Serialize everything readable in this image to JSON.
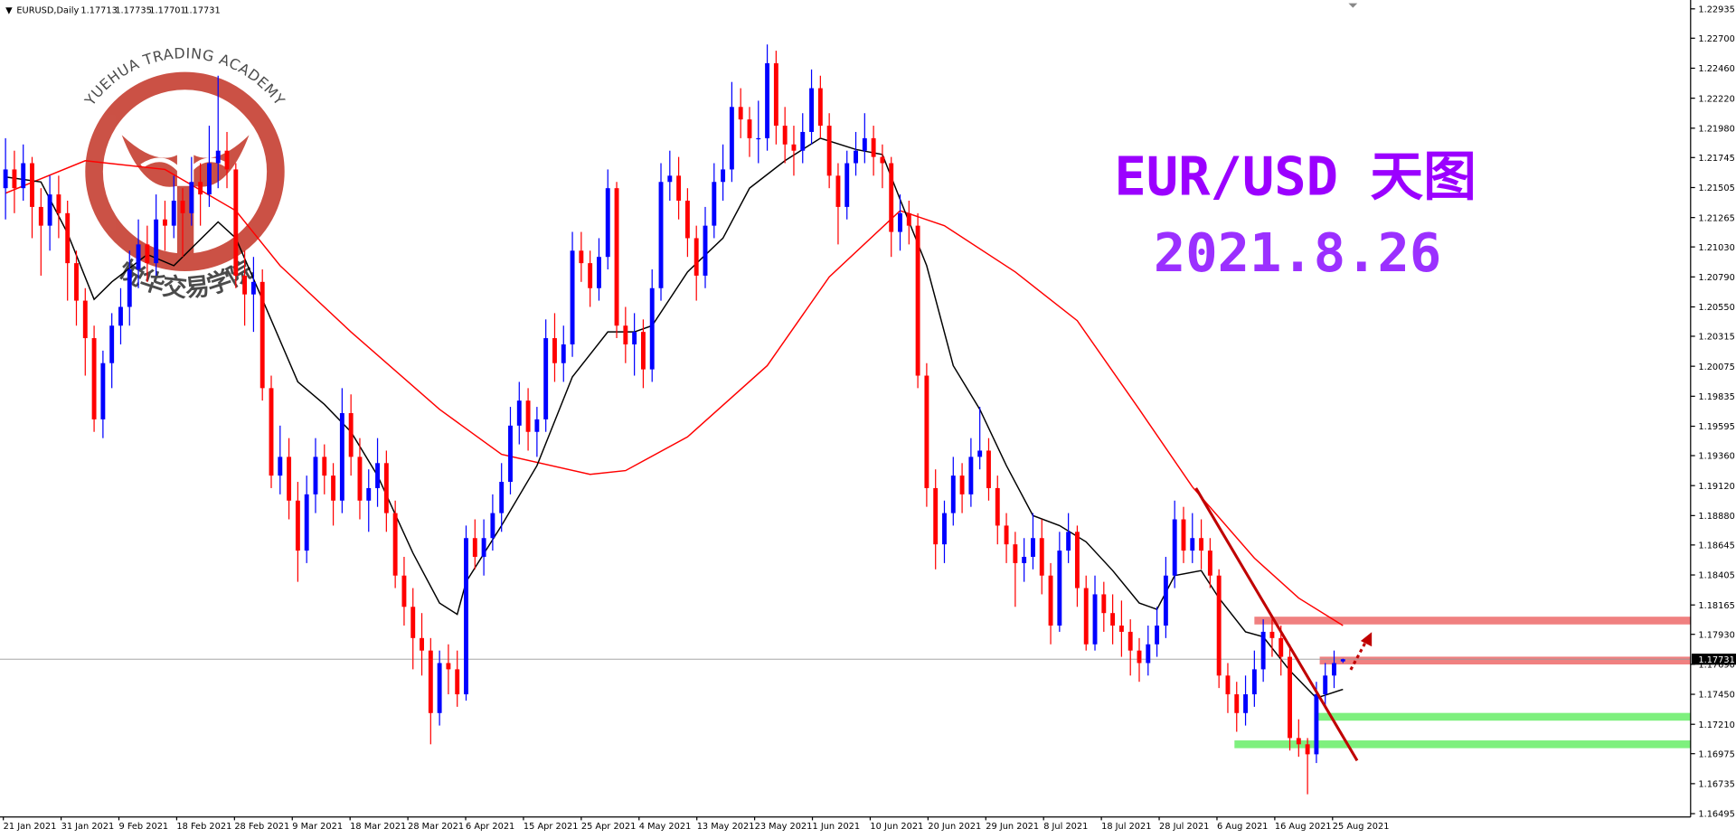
{
  "chart_data": {
    "type": "candlestick",
    "title": "EUR/USD 天图",
    "subtitle": "2021.8.26",
    "symbol": "EURUSD,Daily",
    "watermark": {
      "en": "YUEHUA TRADING ACADEMY",
      "cn": "悦华交易学院"
    },
    "up_color": "#0000ff",
    "down_color": "#ff0000",
    "ylim": [
      1.16495,
      1.22935
    ],
    "yticks": [
      1.22935,
      {
        "value": 1.227,
        "label": "1.22700"
      },
      {
        "value": 1.2246,
        "label": "1.22460"
      },
      {
        "value": 1.2222,
        "label": "1.22220"
      },
      {
        "value": 1.2198,
        "label": "1.21980"
      },
      1.21745,
      1.21505,
      1.21265,
      {
        "value": 1.2103,
        "label": "1.21030"
      },
      {
        "value": 1.2079,
        "label": "1.20790"
      },
      {
        "value": 1.2055,
        "label": "1.20550"
      },
      1.20315,
      1.20075,
      1.19835,
      1.19595,
      {
        "value": 1.1936,
        "label": "1.19360"
      },
      {
        "value": 1.1912,
        "label": "1.19120"
      },
      {
        "value": 1.1888,
        "label": "1.18880"
      },
      1.18645,
      1.18405,
      1.18165,
      {
        "value": 1.1793,
        "label": "1.17930"
      },
      {
        "value": 1.1769,
        "label": "1.17690"
      },
      {
        "value": 1.1745,
        "label": "1.17450"
      },
      {
        "value": 1.1721,
        "label": "1.17210"
      },
      1.16975,
      1.16735,
      1.16495
    ],
    "categories": [
      "21 Jan 2021",
      "31 Jan 2021",
      "9 Feb 2021",
      "18 Feb 2021",
      "28 Feb 2021",
      "9 Mar 2021",
      "18 Mar 2021",
      "28 Mar 2021",
      "6 Apr 2021",
      "15 Apr 2021",
      "25 Apr 2021",
      "4 May 2021",
      "13 May 2021",
      "23 May 2021",
      "1 Jun 2021",
      "10 Jun 2021",
      "20 Jun 2021",
      "29 Jun 2021",
      "8 Jul 2021",
      "18 Jul 2021",
      "28 Jul 2021",
      "6 Aug 2021",
      "16 Aug 2021",
      "25 Aug 2021"
    ],
    "candles": [
      [
        1.215,
        1.219,
        1.2125,
        1.2165
      ],
      [
        1.2165,
        1.218,
        1.213,
        1.215
      ],
      [
        1.215,
        1.2185,
        1.214,
        1.217
      ],
      [
        1.217,
        1.2175,
        1.211,
        1.2135
      ],
      [
        1.2135,
        1.215,
        1.208,
        1.212
      ],
      [
        1.212,
        1.216,
        1.21,
        1.2145
      ],
      [
        1.2145,
        1.216,
        1.211,
        1.213
      ],
      [
        1.213,
        1.214,
        1.206,
        1.209
      ],
      [
        1.209,
        1.21,
        1.204,
        1.206
      ],
      [
        1.206,
        1.207,
        1.2,
        1.203
      ],
      [
        1.203,
        1.204,
        1.1955,
        1.1965
      ],
      [
        1.1965,
        1.202,
        1.195,
        1.201
      ],
      [
        1.201,
        1.205,
        1.199,
        1.204
      ],
      [
        1.204,
        1.207,
        1.2025,
        1.2055
      ],
      [
        1.2055,
        1.21,
        1.204,
        1.2085
      ],
      [
        1.2085,
        1.2125,
        1.207,
        1.2105
      ],
      [
        1.2105,
        1.212,
        1.2075,
        1.209
      ],
      [
        1.209,
        1.2145,
        1.208,
        1.2125
      ],
      [
        1.2125,
        1.214,
        1.21,
        1.212
      ],
      [
        1.212,
        1.216,
        1.211,
        1.214
      ],
      [
        1.214,
        1.215,
        1.2095,
        1.213
      ],
      [
        1.213,
        1.2175,
        1.212,
        1.2155
      ],
      [
        1.2155,
        1.217,
        1.212,
        1.2145
      ],
      [
        1.2145,
        1.22,
        1.2135,
        1.217
      ],
      [
        1.217,
        1.224,
        1.215,
        1.218
      ],
      [
        1.218,
        1.2195,
        1.215,
        1.2165
      ],
      [
        1.2165,
        1.217,
        1.207,
        1.208
      ],
      [
        1.208,
        1.21,
        1.204,
        1.2065
      ],
      [
        1.2065,
        1.2095,
        1.2035,
        1.2075
      ],
      [
        1.2075,
        1.2085,
        1.198,
        1.199
      ],
      [
        1.199,
        1.2,
        1.191,
        1.192
      ],
      [
        1.192,
        1.196,
        1.1905,
        1.1935
      ],
      [
        1.1935,
        1.195,
        1.1885,
        1.19
      ],
      [
        1.19,
        1.1915,
        1.1835,
        1.186
      ],
      [
        1.186,
        1.192,
        1.185,
        1.1905
      ],
      [
        1.1905,
        1.195,
        1.189,
        1.1935
      ],
      [
        1.1935,
        1.1945,
        1.1905,
        1.192
      ],
      [
        1.192,
        1.193,
        1.188,
        1.19
      ],
      [
        1.19,
        1.199,
        1.189,
        1.197
      ],
      [
        1.197,
        1.1985,
        1.192,
        1.1935
      ],
      [
        1.1935,
        1.195,
        1.1885,
        1.19
      ],
      [
        1.19,
        1.1925,
        1.1875,
        1.191
      ],
      [
        1.191,
        1.195,
        1.1895,
        1.193
      ],
      [
        1.193,
        1.194,
        1.1875,
        1.189
      ],
      [
        1.189,
        1.19,
        1.183,
        1.184
      ],
      [
        1.184,
        1.1855,
        1.18,
        1.1815
      ],
      [
        1.1815,
        1.183,
        1.1765,
        1.179
      ],
      [
        1.179,
        1.181,
        1.176,
        1.178
      ],
      [
        1.178,
        1.179,
        1.1705,
        1.173
      ],
      [
        1.173,
        1.178,
        1.172,
        1.177
      ],
      [
        1.177,
        1.1785,
        1.1745,
        1.1765
      ],
      [
        1.1765,
        1.178,
        1.1735,
        1.1745
      ],
      [
        1.1745,
        1.188,
        1.174,
        1.187
      ],
      [
        1.187,
        1.1885,
        1.1845,
        1.1855
      ],
      [
        1.1855,
        1.1885,
        1.184,
        1.187
      ],
      [
        1.187,
        1.1905,
        1.186,
        1.189
      ],
      [
        1.189,
        1.193,
        1.1875,
        1.1915
      ],
      [
        1.1915,
        1.1975,
        1.1905,
        1.196
      ],
      [
        1.196,
        1.1995,
        1.1945,
        1.198
      ],
      [
        1.198,
        1.199,
        1.194,
        1.1955
      ],
      [
        1.1955,
        1.1975,
        1.1935,
        1.1965
      ],
      [
        1.1965,
        1.2045,
        1.1955,
        1.203
      ],
      [
        1.203,
        1.205,
        1.1995,
        1.201
      ],
      [
        1.201,
        1.204,
        1.1995,
        1.2025
      ],
      [
        1.2025,
        1.2115,
        1.2015,
        1.21
      ],
      [
        1.21,
        1.2115,
        1.2075,
        1.209
      ],
      [
        1.209,
        1.21,
        1.2055,
        1.207
      ],
      [
        1.207,
        1.211,
        1.206,
        1.2095
      ],
      [
        1.2095,
        1.2165,
        1.2085,
        1.215
      ],
      [
        1.215,
        1.2155,
        1.203,
        1.204
      ],
      [
        1.204,
        1.2055,
        1.201,
        1.2025
      ],
      [
        1.2025,
        1.205,
        1.2,
        1.2035
      ],
      [
        1.2035,
        1.2045,
        1.199,
        1.2005
      ],
      [
        1.2005,
        1.2085,
        1.1995,
        1.207
      ],
      [
        1.207,
        1.217,
        1.206,
        1.2155
      ],
      [
        1.2155,
        1.218,
        1.214,
        1.216
      ],
      [
        1.216,
        1.2175,
        1.2125,
        1.214
      ],
      [
        1.214,
        1.215,
        1.2095,
        1.211
      ],
      [
        1.211,
        1.212,
        1.206,
        1.208
      ],
      [
        1.208,
        1.2135,
        1.207,
        1.212
      ],
      [
        1.212,
        1.217,
        1.211,
        1.2155
      ],
      [
        1.2155,
        1.2185,
        1.214,
        1.2165
      ],
      [
        1.2165,
        1.2235,
        1.2155,
        1.2215
      ],
      [
        1.2215,
        1.223,
        1.219,
        1.2205
      ],
      [
        1.2205,
        1.2215,
        1.2175,
        1.219
      ],
      [
        1.219,
        1.222,
        1.217,
        1.219
      ],
      [
        1.219,
        1.2265,
        1.218,
        1.225
      ],
      [
        1.225,
        1.226,
        1.2185,
        1.22
      ],
      [
        1.22,
        1.2215,
        1.217,
        1.2185
      ],
      [
        1.2185,
        1.22,
        1.216,
        1.218
      ],
      [
        1.218,
        1.221,
        1.217,
        1.2195
      ],
      [
        1.2195,
        1.2245,
        1.2185,
        1.223
      ],
      [
        1.223,
        1.224,
        1.219,
        1.22
      ],
      [
        1.22,
        1.221,
        1.215,
        1.216
      ],
      [
        1.216,
        1.217,
        1.2105,
        1.2135
      ],
      [
        1.2135,
        1.218,
        1.2125,
        1.217
      ],
      [
        1.217,
        1.2195,
        1.216,
        1.218
      ],
      [
        1.218,
        1.221,
        1.217,
        1.219
      ],
      [
        1.219,
        1.22,
        1.216,
        1.2175
      ],
      [
        1.2175,
        1.2185,
        1.215,
        1.217
      ],
      [
        1.217,
        1.2175,
        1.2095,
        1.2115
      ],
      [
        1.2115,
        1.2145,
        1.21,
        1.213
      ],
      [
        1.213,
        1.214,
        1.2105,
        1.212
      ],
      [
        1.212,
        1.213,
        1.199,
        1.2
      ],
      [
        1.2,
        1.201,
        1.1895,
        1.191
      ],
      [
        1.191,
        1.1925,
        1.1845,
        1.1865
      ],
      [
        1.1865,
        1.19,
        1.185,
        1.189
      ],
      [
        1.189,
        1.1935,
        1.188,
        1.192
      ],
      [
        1.192,
        1.193,
        1.189,
        1.1905
      ],
      [
        1.1905,
        1.195,
        1.1895,
        1.1935
      ],
      [
        1.1935,
        1.1975,
        1.1925,
        1.194
      ],
      [
        1.194,
        1.195,
        1.19,
        1.191
      ],
      [
        1.191,
        1.192,
        1.1865,
        1.188
      ],
      [
        1.188,
        1.189,
        1.185,
        1.1865
      ],
      [
        1.1865,
        1.1875,
        1.1815,
        1.185
      ],
      [
        1.185,
        1.187,
        1.1835,
        1.1855
      ],
      [
        1.1855,
        1.189,
        1.1845,
        1.187
      ],
      [
        1.187,
        1.1885,
        1.1825,
        1.184
      ],
      [
        1.184,
        1.185,
        1.1785,
        1.18
      ],
      [
        1.18,
        1.1875,
        1.1795,
        1.186
      ],
      [
        1.186,
        1.189,
        1.185,
        1.1875
      ],
      [
        1.1875,
        1.188,
        1.1815,
        1.183
      ],
      [
        1.183,
        1.184,
        1.178,
        1.1785
      ],
      [
        1.1785,
        1.184,
        1.178,
        1.1825
      ],
      [
        1.1825,
        1.1835,
        1.1795,
        1.181
      ],
      [
        1.181,
        1.1825,
        1.1785,
        1.18
      ],
      [
        1.18,
        1.182,
        1.1775,
        1.1795
      ],
      [
        1.1795,
        1.1805,
        1.176,
        1.178
      ],
      [
        1.178,
        1.179,
        1.1755,
        1.177
      ],
      [
        1.177,
        1.18,
        1.176,
        1.1785
      ],
      [
        1.1785,
        1.1815,
        1.1775,
        1.18
      ],
      [
        1.18,
        1.1855,
        1.179,
        1.184
      ],
      [
        1.184,
        1.19,
        1.183,
        1.1885
      ],
      [
        1.1885,
        1.1895,
        1.185,
        1.186
      ],
      [
        1.186,
        1.189,
        1.185,
        1.187
      ],
      [
        1.187,
        1.1885,
        1.1845,
        1.186
      ],
      [
        1.186,
        1.187,
        1.183,
        1.184
      ],
      [
        1.184,
        1.1845,
        1.175,
        1.176
      ],
      [
        1.176,
        1.177,
        1.173,
        1.1745
      ],
      [
        1.1745,
        1.1755,
        1.1715,
        1.173
      ],
      [
        1.173,
        1.176,
        1.172,
        1.1745
      ],
      [
        1.1745,
        1.178,
        1.1735,
        1.1765
      ],
      [
        1.1765,
        1.1805,
        1.1755,
        1.1795
      ],
      [
        1.1795,
        1.1805,
        1.1775,
        1.179
      ],
      [
        1.179,
        1.18,
        1.176,
        1.1775
      ],
      [
        1.1775,
        1.1785,
        1.17,
        1.171
      ],
      [
        1.171,
        1.1725,
        1.1695,
        1.1705
      ],
      [
        1.1705,
        1.171,
        1.1665,
        1.1697
      ],
      [
        1.1697,
        1.1755,
        1.169,
        1.1745
      ],
      [
        1.1745,
        1.177,
        1.1735,
        1.176
      ],
      [
        1.176,
        1.178,
        1.175,
        1.177
      ],
      [
        1.17713,
        1.17735,
        1.17701,
        1.17731
      ]
    ],
    "lines": [
      {
        "color": "#ff0000",
        "x": [
          0,
          9,
          18,
          26,
          31,
          39,
          49,
          56,
          66,
          70,
          77,
          86,
          93,
          101,
          106,
          114,
          121,
          128,
          134,
          141,
          146,
          151
        ],
        "values": [
          1.2146,
          1.2172,
          1.2165,
          1.2132,
          1.2088,
          1.2035,
          1.1973,
          1.1937,
          1.1921,
          1.1924,
          1.1951,
          1.2008,
          1.2079,
          1.2132,
          1.212,
          1.2083,
          1.2044,
          1.1973,
          1.1911,
          1.1854,
          1.1822,
          1.18
        ]
      },
      {
        "color": "#000000",
        "x": [
          0,
          4,
          7,
          10,
          12,
          16,
          19,
          24,
          26,
          29,
          33,
          36,
          39,
          42,
          46,
          49,
          51,
          52,
          56,
          60,
          64,
          68,
          71,
          73,
          77,
          81,
          84,
          88,
          92,
          96,
          99,
          101,
          104,
          107,
          110,
          113,
          116,
          119,
          122,
          125,
          128,
          130,
          132,
          135,
          137,
          140,
          142,
          145,
          148,
          151
        ],
        "values": [
          1.2159,
          1.2155,
          1.2114,
          1.2061,
          1.2075,
          1.2097,
          1.2088,
          1.2123,
          1.211,
          1.2061,
          1.1995,
          1.1977,
          1.1955,
          1.192,
          1.1858,
          1.1818,
          1.1809,
          1.1835,
          1.188,
          1.1928,
          1.1999,
          1.2035,
          1.2035,
          1.204,
          1.2083,
          1.211,
          1.215,
          1.2172,
          1.219,
          1.2181,
          1.2177,
          1.2141,
          1.2088,
          1.2008,
          1.1973,
          1.1928,
          1.1888,
          1.188,
          1.1867,
          1.1844,
          1.1818,
          1.1813,
          1.184,
          1.1844,
          1.1822,
          1.1795,
          1.1791,
          1.1764,
          1.1742,
          1.1749
        ]
      }
    ],
    "levels": [
      {
        "value": 1.1804,
        "color": "#f08080"
      },
      {
        "value": 1.1772,
        "color": "#f08080"
      },
      {
        "value": 1.1727,
        "color": "#7ef07e"
      },
      {
        "value": 1.1705,
        "color": "#7ef07e"
      }
    ],
    "trendline": {
      "color": "#c00000",
      "x": [
        134.4,
        152.6
      ],
      "values": [
        1.191,
        1.1692
      ]
    }
  }
}
